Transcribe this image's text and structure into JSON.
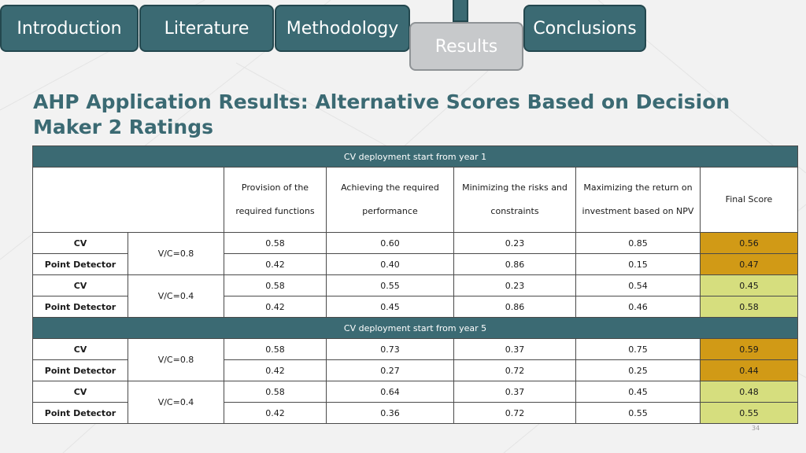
{
  "nav": {
    "tabs": [
      {
        "label": "Introduction",
        "active": false
      },
      {
        "label": "Literature",
        "active": false
      },
      {
        "label": "Methodology",
        "active": false
      },
      {
        "label": "Results",
        "active": true
      },
      {
        "label": "Conclusions",
        "active": false
      }
    ]
  },
  "title": "AHP Application Results: Alternative Scores Based on Decision Maker 2 Ratings",
  "table": {
    "criteria": [
      {
        "line1": "Provision of the",
        "line2": "required functions"
      },
      {
        "line1": "Achieving the required",
        "line2": "performance"
      },
      {
        "line1": "Minimizing the risks and",
        "line2": "constraints"
      },
      {
        "line1": "Maximizing the return on",
        "line2": "investment based on NPV"
      }
    ],
    "final_score_label": "Final Score",
    "sections": [
      {
        "title": "CV deployment start from year 1",
        "groups": [
          {
            "vc": "V/C=0.8",
            "rows": [
              {
                "alt": "CV",
                "values": [
                  "0.58",
                  "0.60",
                  "0.23",
                  "0.85"
                ],
                "final": "0.56"
              },
              {
                "alt": "Point Detector",
                "values": [
                  "0.42",
                  "0.40",
                  "0.86",
                  "0.15"
                ],
                "final": "0.47"
              }
            ]
          },
          {
            "vc": "V/C=0.4",
            "rows": [
              {
                "alt": "CV",
                "values": [
                  "0.58",
                  "0.55",
                  "0.23",
                  "0.54"
                ],
                "final": "0.45"
              },
              {
                "alt": "Point Detector",
                "values": [
                  "0.42",
                  "0.45",
                  "0.86",
                  "0.46"
                ],
                "final": "0.58"
              }
            ]
          }
        ]
      },
      {
        "title": "CV deployment start from year 5",
        "groups": [
          {
            "vc": "V/C=0.8",
            "rows": [
              {
                "alt": "CV",
                "values": [
                  "0.58",
                  "0.73",
                  "0.37",
                  "0.75"
                ],
                "final": "0.59"
              },
              {
                "alt": "Point Detector",
                "values": [
                  "0.42",
                  "0.27",
                  "0.72",
                  "0.25"
                ],
                "final": "0.44"
              }
            ]
          },
          {
            "vc": "V/C=0.4",
            "rows": [
              {
                "alt": "CV",
                "values": [
                  "0.58",
                  "0.64",
                  "0.37",
                  "0.45"
                ],
                "final": "0.48"
              },
              {
                "alt": "Point Detector",
                "values": [
                  "0.42",
                  "0.36",
                  "0.72",
                  "0.55"
                ],
                "final": "0.55"
              }
            ]
          }
        ]
      }
    ]
  },
  "page_number": "34",
  "colors": {
    "accent": "#3b6a73",
    "highlight_high": "#d19a16",
    "highlight_low": "#d6de7e"
  }
}
